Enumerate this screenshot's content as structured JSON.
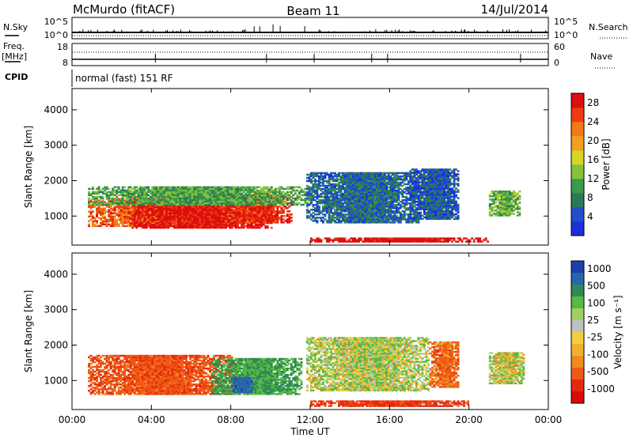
{
  "header": {
    "station": "McMurdo (fitACF)",
    "beam": "Beam 11",
    "date": "14/Jul/2014"
  },
  "top_panels": {
    "nsky_label": "N.Sky",
    "nsky_top": "10^5",
    "nsky_bottom": "10^0",
    "nsearch_label": "N.Search",
    "nsearch_top": "10^5",
    "nsearch_bottom": "10^0",
    "freq_label": "Freq.",
    "freq_unit": "[MHz]",
    "freq_top": "18",
    "freq_bottom": "8",
    "nave_label": "Nave",
    "nave_top": "60",
    "nave_bottom": "0",
    "cpid_label": "CPID",
    "cpid_value": "normal (fast) 151 RF"
  },
  "colors": {
    "power_scale": [
      "#1b2fd8",
      "#2050c8",
      "#2a7a5a",
      "#3c9a4a",
      "#86c23a",
      "#d6d425",
      "#f2a020",
      "#f27a16",
      "#ee3b12",
      "#dd0f0f"
    ],
    "velocity_scale": [
      "#1f3fb0",
      "#2a65a8",
      "#2f8a55",
      "#5ab845",
      "#a0d060",
      "#c0c0c0",
      "#f0d040",
      "#f0b030",
      "#f08a20",
      "#ee5a16",
      "#e62a10",
      "#dd0a0a"
    ]
  },
  "chart_data": [
    {
      "type": "heatmap",
      "ylabel": "Slant Range [km]",
      "xlabel": "",
      "ylim": [
        180,
        4600
      ],
      "yticks": [
        "1000",
        "2000",
        "3000",
        "4000"
      ],
      "colorbar": {
        "label": "Power [dB]",
        "ticks": [
          "4",
          "8",
          "12",
          "16",
          "20",
          "24",
          "28"
        ],
        "range": [
          0,
          30
        ]
      },
      "regions": [
        {
          "t0": 0.8,
          "t1": 7.2,
          "r0": 700,
          "r1": 1500,
          "value": 24
        },
        {
          "t0": 3.0,
          "t1": 10.0,
          "r0": 650,
          "r1": 1300,
          "value": 29
        },
        {
          "t0": 7.5,
          "t1": 11.0,
          "r0": 800,
          "r1": 1600,
          "value": 27
        },
        {
          "t0": 0.8,
          "t1": 12.0,
          "r0": 1300,
          "r1": 1800,
          "value": 11
        },
        {
          "t0": 11.8,
          "t1": 17.5,
          "r0": 800,
          "r1": 2200,
          "value": 6
        },
        {
          "t0": 17.0,
          "t1": 19.5,
          "r0": 900,
          "r1": 2300,
          "value": 5
        },
        {
          "t0": 21.0,
          "t1": 22.6,
          "r0": 1000,
          "r1": 1700,
          "value": 12
        },
        {
          "t0": 12.0,
          "t1": 21.0,
          "r0": 260,
          "r1": 380,
          "value": 30
        }
      ]
    },
    {
      "type": "heatmap",
      "ylabel": "Slant Range [km]",
      "xlabel": "Time UT",
      "ylim": [
        180,
        4600
      ],
      "yticks": [
        "1000",
        "2000",
        "3000",
        "4000"
      ],
      "xticks": [
        "00:00",
        "04:00",
        "08:00",
        "12:00",
        "16:00",
        "20:00",
        "00:00"
      ],
      "xlim": [
        0,
        24
      ],
      "colorbar": {
        "label": "Velocity [m s⁻¹]",
        "ticks": [
          "1000",
          "500",
          "100",
          "25",
          "-25",
          "-100",
          "-500",
          "-1000"
        ]
      },
      "regions": [
        {
          "t0": 0.8,
          "t1": 8.0,
          "r0": 600,
          "r1": 1700,
          "value": -200
        },
        {
          "t0": 7.0,
          "t1": 11.5,
          "r0": 600,
          "r1": 1600,
          "value": 250
        },
        {
          "t0": 8.0,
          "t1": 9.0,
          "r0": 650,
          "r1": 1100,
          "value": 900
        },
        {
          "t0": 11.8,
          "t1": 18.0,
          "r0": 700,
          "r1": 2200,
          "value": 60
        },
        {
          "t0": 18.0,
          "t1": 19.5,
          "r0": 800,
          "r1": 2100,
          "value": -150
        },
        {
          "t0": 21.0,
          "t1": 22.8,
          "r0": 900,
          "r1": 1800,
          "value": 40
        },
        {
          "t0": 12.0,
          "t1": 20.0,
          "r0": 260,
          "r1": 400,
          "value": -300
        }
      ]
    }
  ]
}
